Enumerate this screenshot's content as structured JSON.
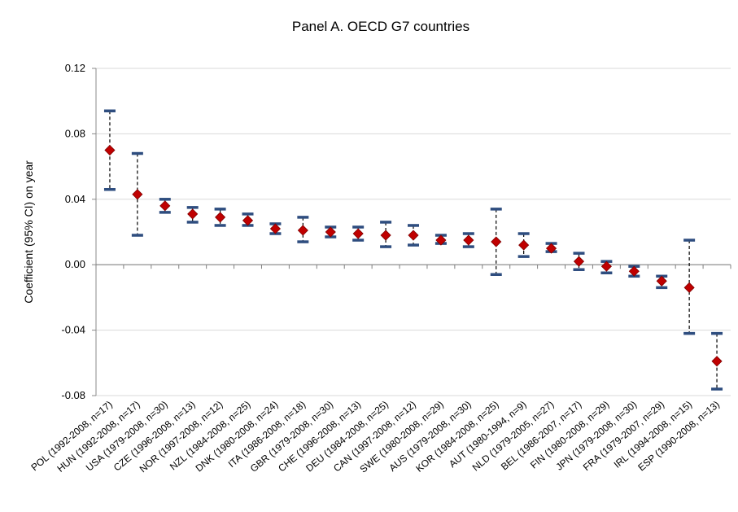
{
  "chart_data": {
    "type": "scatter",
    "title": "Panel A. OECD G7 countries",
    "ylabel": "Coefficient (95% CI) on year",
    "xlabel": "",
    "ylim": [
      -0.08,
      0.12
    ],
    "yticks": [
      "0.12",
      "0.08",
      "0.04",
      "0.00",
      "-0.04",
      "-0.08"
    ],
    "ytick_values": [
      0.12,
      0.08,
      0.04,
      0.0,
      -0.04,
      -0.08
    ],
    "grid": true,
    "colors": {
      "marker": "#c00000",
      "marker_edge": "#7f0000",
      "ci_cap": "#2e4d7f",
      "ci_line": "#000000",
      "grid": "#d9d9d9",
      "zero_line": "#808080"
    },
    "categories": [
      "POL (1992-2008, n=17)",
      "HUN (1992-2008, n=17)",
      "USA (1979-2008, n=30)",
      "CZE (1996-2008, n=13)",
      "NOR (1997-2008, n=12)",
      "NZL (1984-2008, n=25)",
      "DNK (1980-2008, n=24)",
      "ITA (1986-2008, n=18)",
      "GBR (1979-2008, n=30)",
      "CHE (1996-2008, n=13)",
      "DEU (1984-2008, n=25)",
      "CAN (1997-2008, n=12)",
      "SWE (1980-2008, n=29)",
      "AUS (1979-2008, n=30)",
      "KOR (1984-2008, n=25)",
      "AUT (1980-1994, n=9)",
      "NLD (1979-2005, n=27)",
      "BEL (1986-2007, n=17)",
      "FIN (1980-2008, n=29)",
      "JPN (1979-2008, n=30)",
      "FRA (1979-2007, n=29)",
      "IRL (1994-2008, n=15)",
      "ESP (1990-2008, n=13)"
    ],
    "estimate": [
      0.07,
      0.043,
      0.036,
      0.031,
      0.029,
      0.027,
      0.022,
      0.021,
      0.02,
      0.019,
      0.018,
      0.018,
      0.015,
      0.015,
      0.014,
      0.012,
      0.01,
      0.002,
      -0.001,
      -0.004,
      -0.01,
      -0.014,
      -0.059
    ],
    "ci_upper": [
      0.094,
      0.068,
      0.04,
      0.035,
      0.034,
      0.031,
      0.025,
      0.029,
      0.023,
      0.023,
      0.026,
      0.024,
      0.018,
      0.019,
      0.034,
      0.019,
      0.013,
      0.007,
      0.002,
      -0.001,
      -0.007,
      0.015,
      -0.042
    ],
    "ci_lower": [
      0.046,
      0.018,
      0.032,
      0.026,
      0.024,
      0.024,
      0.019,
      0.014,
      0.017,
      0.015,
      0.011,
      0.012,
      0.013,
      0.011,
      -0.006,
      0.005,
      0.008,
      -0.003,
      -0.005,
      -0.007,
      -0.014,
      -0.042,
      -0.076
    ]
  }
}
